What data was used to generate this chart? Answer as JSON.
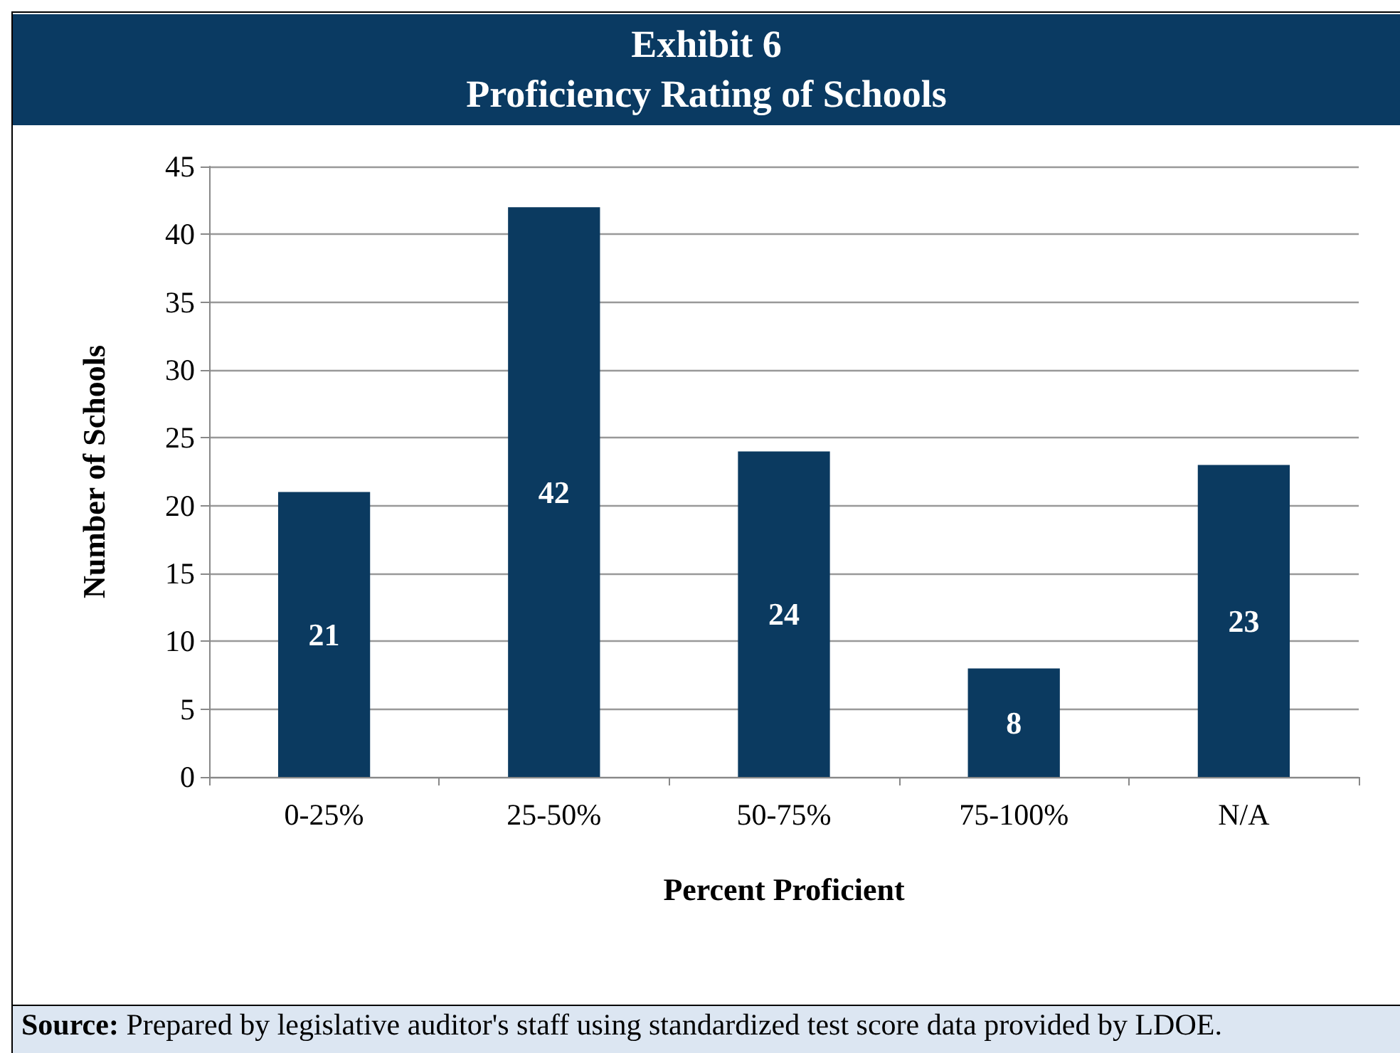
{
  "chart_data": {
    "type": "bar",
    "title": "Exhibit 6",
    "subtitle": "Proficiency Rating of Schools",
    "xlabel": "Percent Proficient",
    "ylabel": "Number of Schools",
    "categories": [
      "0-25%",
      "25-50%",
      "50-75%",
      "75-100%",
      "N/A"
    ],
    "values": [
      21,
      42,
      24,
      8,
      23
    ],
    "color": "#0b3a60",
    "ylim": [
      0,
      45
    ],
    "yticks": [
      0,
      5,
      10,
      15,
      20,
      25,
      30,
      35,
      40,
      45
    ],
    "grid": "y",
    "data_labels": true,
    "annotations": [
      "Source: Prepared by legislative auditor's staff using standardized test score data provided by LDOE."
    ]
  }
}
